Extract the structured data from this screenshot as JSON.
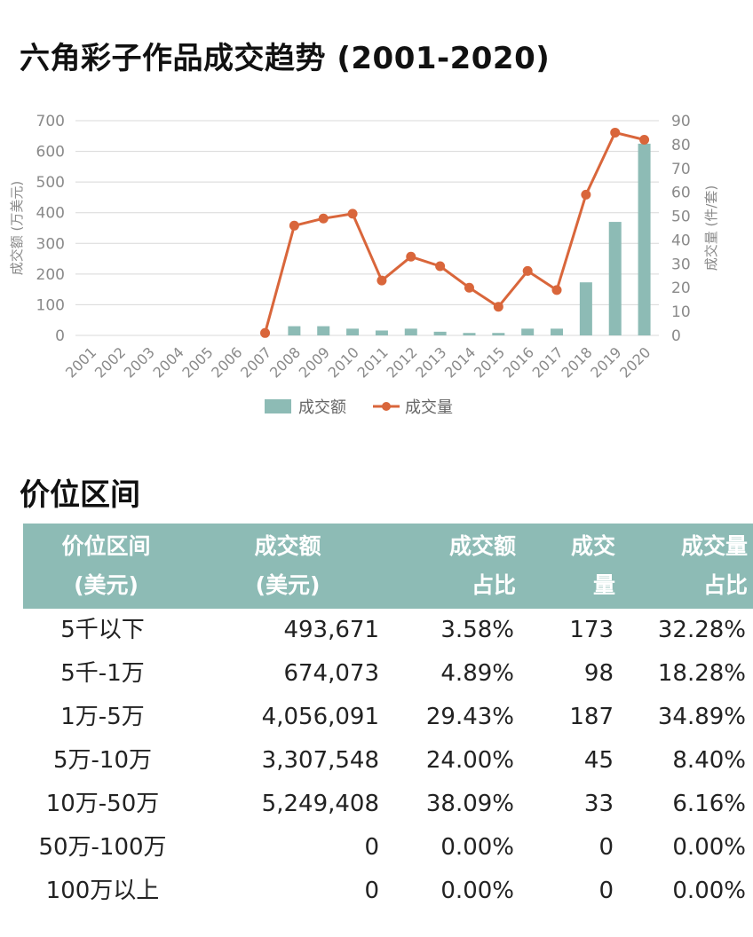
{
  "page": {
    "chart_title": "六角彩子作品成交趋势 (2001-2020)",
    "section_title": "价位区间"
  },
  "colors": {
    "bar": "#8dbbb5",
    "line": "#d9663b",
    "header_bg": "#8dbbb5",
    "grid": "#d8d8d8",
    "axis_text": "#8a8a8a"
  },
  "chart_data": {
    "type": "bar",
    "title": "六角彩子作品成交趋势 (2001-2020)",
    "categories": [
      "2001",
      "2002",
      "2003",
      "2004",
      "2005",
      "2006",
      "2007",
      "2008",
      "2009",
      "2010",
      "2011",
      "2012",
      "2013",
      "2014",
      "2015",
      "2016",
      "2017",
      "2018",
      "2019",
      "2020"
    ],
    "ylabel": "成交额 (万美元)",
    "ylabel_right": "成交量 (件/套)",
    "ylim": [
      0,
      700
    ],
    "ylim_right": [
      0,
      90
    ],
    "yticks": [
      0,
      100,
      200,
      300,
      400,
      500,
      600,
      700
    ],
    "yticks_right": [
      0,
      10,
      20,
      30,
      40,
      50,
      60,
      70,
      80,
      90
    ],
    "grid": true,
    "legend": "bottom",
    "series": [
      {
        "name": "成交额",
        "kind": "bar",
        "axis": "left",
        "values": [
          0,
          0,
          0,
          0,
          0,
          0,
          0,
          30,
          30,
          22,
          16,
          22,
          12,
          8,
          8,
          22,
          22,
          173,
          370,
          625
        ]
      },
      {
        "name": "成交量",
        "kind": "line",
        "axis": "right",
        "values": [
          null,
          null,
          null,
          null,
          null,
          null,
          1,
          46,
          49,
          51,
          23,
          33,
          29,
          20,
          12,
          27,
          19,
          59,
          85,
          82
        ]
      }
    ]
  },
  "price_table": {
    "headers": [
      {
        "line1": "价位区间",
        "line2": "(美元)"
      },
      {
        "line1": "成交额",
        "line2": "(美元)"
      },
      {
        "line1": "成交额",
        "line2": "占比"
      },
      {
        "line1": "成交",
        "line2": "量"
      },
      {
        "line1": "成交量",
        "line2": "占比"
      }
    ],
    "rows": [
      [
        "5千以下",
        "493,671",
        "3.58%",
        "173",
        "32.28%"
      ],
      [
        "5千-1万",
        "674,073",
        "4.89%",
        "98",
        "18.28%"
      ],
      [
        "1万-5万",
        "4,056,091",
        "29.43%",
        "187",
        "34.89%"
      ],
      [
        "5万-10万",
        "3,307,548",
        "24.00%",
        "45",
        "8.40%"
      ],
      [
        "10万-50万",
        "5,249,408",
        "38.09%",
        "33",
        "6.16%"
      ],
      [
        "50万-100万",
        "0",
        "0.00%",
        "0",
        "0.00%"
      ],
      [
        "100万以上",
        "0",
        "0.00%",
        "0",
        "0.00%"
      ]
    ]
  }
}
